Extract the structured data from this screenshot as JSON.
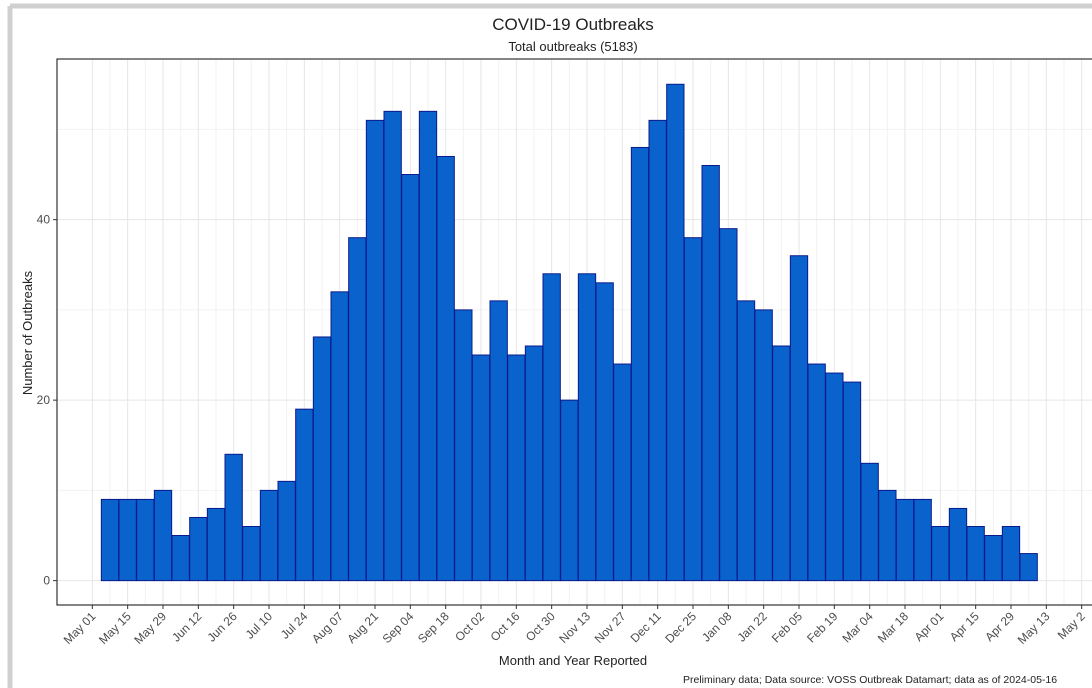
{
  "chart_data": {
    "type": "bar",
    "title": "COVID-19 Outbreaks",
    "subtitle": "Total outbreaks (5183)",
    "x_label": "Month and Year Reported",
    "y_label": "Number of Outbreaks",
    "footnote": "Preliminary data; Data source: VOSS Outbreak Datamart; data as of 2024-05-16",
    "color": "#0a63cc",
    "edge_color": "#0a1a8c",
    "grid": true,
    "x": [
      1,
      2,
      3,
      4,
      5,
      6,
      7,
      8,
      9,
      10,
      11,
      12,
      13,
      14,
      15,
      16,
      17,
      18,
      19,
      20,
      21,
      22,
      23,
      24,
      25,
      26,
      27,
      28,
      29,
      30,
      31,
      32,
      33,
      34,
      35,
      36,
      37,
      38,
      39,
      40,
      41,
      42,
      43,
      44,
      45,
      46,
      47,
      48,
      49,
      50,
      51,
      52,
      53
    ],
    "values": [
      9,
      9,
      9,
      10,
      5,
      7,
      8,
      14,
      6,
      10,
      11,
      19,
      27,
      32,
      38,
      51,
      52,
      45,
      52,
      47,
      30,
      25,
      31,
      25,
      26,
      34,
      20,
      34,
      33,
      24,
      48,
      51,
      55,
      38,
      46,
      39,
      31,
      30,
      26,
      36,
      24,
      23,
      22,
      13,
      10,
      9,
      9,
      6,
      8,
      6,
      5,
      6,
      3
    ],
    "xlim": [
      -2,
      58
    ],
    "xticks": [
      {
        "value": 0,
        "label": "May 01"
      },
      {
        "value": 2,
        "label": "May 15"
      },
      {
        "value": 4,
        "label": "May 29"
      },
      {
        "value": 6,
        "label": "Jun 12"
      },
      {
        "value": 8,
        "label": "Jun 26"
      },
      {
        "value": 10,
        "label": "Jul 10"
      },
      {
        "value": 12,
        "label": "Jul 24"
      },
      {
        "value": 14,
        "label": "Aug 07"
      },
      {
        "value": 16,
        "label": "Aug 21"
      },
      {
        "value": 18,
        "label": "Sep 04"
      },
      {
        "value": 20,
        "label": "Sep 18"
      },
      {
        "value": 22,
        "label": "Oct 02"
      },
      {
        "value": 24,
        "label": "Oct 16"
      },
      {
        "value": 26,
        "label": "Oct 30"
      },
      {
        "value": 28,
        "label": "Nov 13"
      },
      {
        "value": 30,
        "label": "Nov 27"
      },
      {
        "value": 32,
        "label": "Dec 11"
      },
      {
        "value": 34,
        "label": "Dec 25"
      },
      {
        "value": 36,
        "label": "Jan 08"
      },
      {
        "value": 38,
        "label": "Jan 22"
      },
      {
        "value": 40,
        "label": "Feb 05"
      },
      {
        "value": 42,
        "label": "Feb 19"
      },
      {
        "value": 44,
        "label": "Mar 04"
      },
      {
        "value": 46,
        "label": "Mar 18"
      },
      {
        "value": 48,
        "label": "Apr 01"
      },
      {
        "value": 50,
        "label": "Apr 15"
      },
      {
        "value": 52,
        "label": "Apr 29"
      },
      {
        "value": 54,
        "label": "May 13"
      },
      {
        "value": 56,
        "label": "May 2"
      }
    ],
    "ylim": [
      -2.7,
      57.8
    ],
    "yticks": [
      0,
      20,
      40
    ],
    "minor_yticks": [
      10,
      30,
      50
    ]
  }
}
